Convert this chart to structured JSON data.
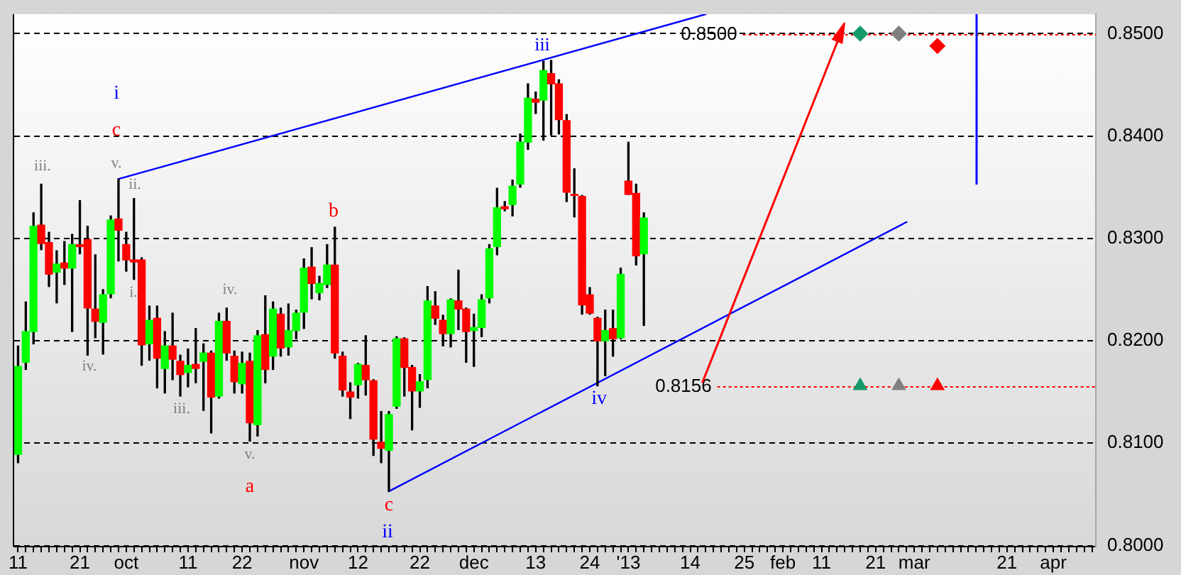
{
  "chart_data": {
    "type": "candlestick",
    "categories": [
      "11",
      null,
      null,
      null,
      null,
      null,
      null,
      null,
      "21",
      null,
      null,
      null,
      null,
      null,
      "oct",
      null,
      null,
      null,
      null,
      null,
      null,
      null,
      "11",
      null,
      null,
      null,
      null,
      null,
      null,
      "22",
      null,
      null,
      null,
      null,
      null,
      null,
      null,
      "nov",
      null,
      null,
      null,
      null,
      null,
      null,
      "12",
      null,
      null,
      null,
      null,
      null,
      null,
      null,
      "22",
      null,
      null,
      null,
      null,
      null,
      null,
      "dec",
      null,
      null,
      null,
      null,
      null,
      null,
      null,
      "13",
      null,
      null,
      null,
      null,
      null,
      null,
      "24",
      null,
      null,
      null,
      null,
      "'13",
      null,
      null,
      null,
      null,
      null,
      null,
      null,
      "14",
      null,
      null,
      null,
      null,
      null,
      null,
      "25",
      null,
      null,
      null,
      null,
      "feb",
      null,
      null,
      null,
      null,
      "11",
      null,
      null,
      null,
      null,
      null,
      null,
      "21",
      null,
      null,
      null,
      null,
      "mar",
      null,
      null,
      null,
      null,
      null,
      null,
      null,
      null,
      null,
      null,
      null,
      "21",
      null,
      null,
      null,
      null,
      null,
      "apr",
      null,
      null,
      null,
      null,
      null
    ],
    "ohlc": [
      [
        0.8089,
        0.8195,
        0.8081,
        0.8175
      ],
      [
        0.8179,
        0.8238,
        0.8172,
        0.8209
      ],
      [
        0.8209,
        0.8325,
        0.8197,
        0.8312
      ],
      [
        0.8313,
        0.8353,
        0.8289,
        0.8295
      ],
      [
        0.8296,
        0.8306,
        0.8253,
        0.8265
      ],
      [
        0.8267,
        0.8288,
        0.8237,
        0.8275
      ],
      [
        0.8276,
        0.8297,
        0.8255,
        0.8271
      ],
      [
        0.8271,
        0.8304,
        0.8209,
        0.8294
      ],
      [
        0.8294,
        0.8337,
        0.8285,
        0.8292
      ],
      [
        0.8299,
        0.8312,
        0.8186,
        0.8232
      ],
      [
        0.8231,
        0.8284,
        0.8203,
        0.8219
      ],
      [
        0.8218,
        0.825,
        0.8187,
        0.8245
      ],
      [
        0.8246,
        0.8322,
        0.8242,
        0.8318
      ],
      [
        0.8319,
        0.8358,
        0.8278,
        0.8308
      ],
      [
        0.8294,
        0.8306,
        0.8268,
        0.8279
      ],
      [
        0.8279,
        0.8339,
        0.826,
        0.8277
      ],
      [
        0.8279,
        0.8281,
        0.8176,
        0.8196
      ],
      [
        0.8197,
        0.8234,
        0.8181,
        0.822
      ],
      [
        0.8222,
        0.8234,
        0.8154,
        0.8183
      ],
      [
        0.8173,
        0.8209,
        0.8149,
        0.8195
      ],
      [
        0.8195,
        0.8227,
        0.8162,
        0.8182
      ],
      [
        0.818,
        0.8186,
        0.8146,
        0.8167
      ],
      [
        0.8169,
        0.8192,
        0.8155,
        0.8176
      ],
      [
        0.8177,
        0.8212,
        0.8159,
        0.8173
      ],
      [
        0.818,
        0.8197,
        0.8132,
        0.8188
      ],
      [
        0.8188,
        0.819,
        0.811,
        0.8145
      ],
      [
        0.8146,
        0.8227,
        0.8144,
        0.8219
      ],
      [
        0.8219,
        0.8232,
        0.8181,
        0.8188
      ],
      [
        0.8185,
        0.819,
        0.8149,
        0.816
      ],
      [
        0.8158,
        0.8189,
        0.8149,
        0.8178
      ],
      [
        0.818,
        0.8188,
        0.8102,
        0.812
      ],
      [
        0.8118,
        0.821,
        0.8107,
        0.8205
      ],
      [
        0.8206,
        0.8244,
        0.8159,
        0.8172
      ],
      [
        0.8185,
        0.8238,
        0.8172,
        0.8231
      ],
      [
        0.8226,
        0.8232,
        0.8185,
        0.8193
      ],
      [
        0.8194,
        0.8236,
        0.8186,
        0.821
      ],
      [
        0.821,
        0.823,
        0.8202,
        0.8227
      ],
      [
        0.8228,
        0.828,
        0.8212,
        0.8271
      ],
      [
        0.8272,
        0.8291,
        0.8241,
        0.8256
      ],
      [
        0.8247,
        0.8263,
        0.824,
        0.8256
      ],
      [
        0.8255,
        0.8294,
        0.8252,
        0.8274
      ],
      [
        0.8274,
        0.8311,
        0.8183,
        0.8188
      ],
      [
        0.8185,
        0.8189,
        0.8146,
        0.8152
      ],
      [
        0.815,
        0.8159,
        0.8124,
        0.8145
      ],
      [
        0.8157,
        0.8178,
        0.8144,
        0.8177
      ],
      [
        0.8176,
        0.8205,
        0.8147,
        0.8162
      ],
      [
        0.8161,
        0.8162,
        0.8088,
        0.8104
      ],
      [
        0.8101,
        0.8131,
        0.8081,
        0.8095
      ],
      [
        0.8093,
        0.8131,
        0.8053,
        0.8128
      ],
      [
        0.8136,
        0.8204,
        0.8134,
        0.8202
      ],
      [
        0.8202,
        0.8203,
        0.8146,
        0.8174
      ],
      [
        0.8174,
        0.8176,
        0.8113,
        0.8151
      ],
      [
        0.8151,
        0.8167,
        0.8135,
        0.816
      ],
      [
        0.8162,
        0.8253,
        0.8154,
        0.8239
      ],
      [
        0.8234,
        0.8248,
        0.8216,
        0.8222
      ],
      [
        0.822,
        0.8225,
        0.8195,
        0.8207
      ],
      [
        0.8207,
        0.8241,
        0.8194,
        0.824
      ],
      [
        0.8239,
        0.8269,
        0.8211,
        0.8231
      ],
      [
        0.8231,
        0.8232,
        0.8179,
        0.8209
      ],
      [
        0.821,
        0.8226,
        0.8175,
        0.8213
      ],
      [
        0.8213,
        0.8245,
        0.8204,
        0.824
      ],
      [
        0.8242,
        0.8294,
        0.8237,
        0.829
      ],
      [
        0.8292,
        0.8349,
        0.8284,
        0.833
      ],
      [
        0.8331,
        0.8336,
        0.8327,
        0.8329
      ],
      [
        0.8333,
        0.8357,
        0.8322,
        0.8351
      ],
      [
        0.8353,
        0.8402,
        0.835,
        0.8394
      ],
      [
        0.8394,
        0.8451,
        0.8387,
        0.8437
      ],
      [
        0.8436,
        0.8443,
        0.8422,
        0.8433
      ],
      [
        0.8435,
        0.8473,
        0.8396,
        0.8464
      ],
      [
        0.8461,
        0.8474,
        0.8401,
        0.8451
      ],
      [
        0.8451,
        0.8455,
        0.8402,
        0.8416
      ],
      [
        0.8415,
        0.8421,
        0.8336,
        0.8345
      ],
      [
        0.8343,
        0.8368,
        0.8321,
        0.8342
      ],
      [
        0.8341,
        0.8342,
        0.8226,
        0.8235
      ],
      [
        0.8245,
        0.8252,
        0.8226,
        0.8227
      ],
      [
        0.8222,
        0.8223,
        0.8156,
        0.82
      ],
      [
        0.82,
        0.823,
        0.8166,
        0.821
      ],
      [
        0.8212,
        0.823,
        0.8185,
        0.8202
      ],
      [
        0.8203,
        0.8271,
        0.8202,
        0.8265
      ],
      [
        0.8356,
        0.8394,
        0.8343,
        0.8343
      ],
      [
        0.8344,
        0.8353,
        0.8274,
        0.8283
      ],
      [
        0.8285,
        0.8325,
        0.8215,
        0.832
      ],
      null,
      null,
      null,
      null,
      null,
      null,
      null,
      null,
      null,
      null,
      null,
      null,
      null,
      null,
      null,
      null,
      null,
      null,
      null,
      null,
      null,
      null,
      null,
      null,
      null,
      null,
      null,
      null,
      null,
      null,
      null,
      null,
      null,
      null,
      null,
      null,
      null,
      null,
      null,
      null,
      null,
      null,
      null,
      null,
      null,
      null,
      null,
      null,
      null,
      null,
      null,
      null,
      null,
      null,
      null,
      null,
      null,
      null
    ],
    "colors": [
      "#00ff00",
      "#00ff00",
      "#00ff00",
      "#ff0000",
      "#ff0000",
      "#00ff00",
      "#ff0000",
      "#00ff00",
      "#ff0000",
      "#ff0000",
      "#ff0000",
      "#00ff00",
      "#00ff00",
      "#ff0000",
      "#ff0000",
      "#ff0000",
      "#ff0000",
      "#00ff00",
      "#ff0000",
      "#00ff00",
      "#ff0000",
      "#ff0000",
      "#00ff00",
      "#ff0000",
      "#00ff00",
      "#ff0000",
      "#00ff00",
      "#ff0000",
      "#ff0000",
      "#00ff00",
      "#ff0000",
      "#00ff00",
      "#ff0000",
      "#00ff00",
      "#ff0000",
      "#00ff00",
      "#00ff00",
      "#00ff00",
      "#ff0000",
      "#00ff00",
      "#00ff00",
      "#ff0000",
      "#ff0000",
      "#ff0000",
      "#00ff00",
      "#ff0000",
      "#ff0000",
      "#ff0000",
      "#00ff00",
      "#00ff00",
      "#ff0000",
      "#ff0000",
      "#00ff00",
      "#00ff00",
      "#ff0000",
      "#ff0000",
      "#00ff00",
      "#ff0000",
      "#ff0000",
      "#00ff00",
      "#00ff00",
      "#00ff00",
      "#00ff00",
      "#ff0000",
      "#00ff00",
      "#00ff00",
      "#00ff00",
      "#ff0000",
      "#00ff00",
      "#ff0000",
      "#ff0000",
      "#ff0000",
      "#ff0000",
      "#ff0000",
      "#ff0000",
      "#ff0000",
      "#00ff00",
      "#ff0000",
      "#00ff00",
      "#ff0000",
      "#ff0000",
      "#00ff00",
      null,
      null,
      null,
      null,
      null,
      null,
      null,
      null,
      null,
      null,
      null,
      null,
      null,
      null,
      null,
      null,
      null,
      null,
      null,
      null,
      null,
      null,
      null,
      null,
      null,
      null,
      null,
      null,
      null,
      null,
      null,
      null,
      null,
      null,
      null,
      null,
      null,
      null,
      null,
      null,
      null,
      null,
      null,
      null,
      null,
      null,
      null,
      null,
      null,
      null,
      null,
      null,
      null,
      null,
      null,
      null,
      null,
      null
    ],
    "ylim": [
      0.7999,
      0.8519
    ],
    "yticks": [
      {
        "value": 0.8,
        "label": "0.8000"
      },
      {
        "value": 0.81,
        "label": "0.8100"
      },
      {
        "value": 0.82,
        "label": "0.8200"
      },
      {
        "value": 0.83,
        "label": "0.8300"
      },
      {
        "value": 0.84,
        "label": "0.8400"
      },
      {
        "value": 0.85,
        "label": "0.8500"
      }
    ],
    "grid": "y",
    "series": [
      {
        "type": "line",
        "color": "#0000ff",
        "values": [
          null,
          null,
          null,
          null,
          null,
          null,
          null,
          null,
          null,
          null,
          null,
          null,
          null,
          0.8358,
          null,
          null,
          null,
          null,
          null,
          null,
          null,
          null,
          null,
          null,
          null,
          null,
          null,
          null,
          null,
          null,
          null,
          null,
          null,
          null,
          null,
          null,
          null,
          null,
          null,
          null,
          null,
          null,
          null,
          null,
          null,
          null,
          null,
          null,
          null,
          null,
          null,
          null,
          null,
          null,
          null,
          null,
          null,
          null,
          null,
          null,
          null,
          null,
          null,
          null,
          null,
          null,
          null,
          null,
          null,
          null,
          null,
          null,
          null,
          null,
          null,
          null,
          null,
          null,
          null,
          null,
          null,
          null,
          null,
          null,
          null,
          null,
          null,
          null,
          null,
          0.8519,
          null,
          null,
          null,
          null,
          null,
          null,
          null,
          null,
          null,
          null,
          null,
          null,
          null,
          null,
          null,
          null,
          null,
          null,
          null,
          null,
          null,
          null,
          null,
          null,
          null,
          null,
          null,
          null,
          null,
          null,
          null,
          null,
          null,
          null,
          null,
          null,
          null,
          null,
          null,
          null,
          null,
          null,
          null,
          null,
          null,
          null,
          null,
          null,
          null,
          null
        ]
      },
      {
        "type": "line",
        "color": "#0000ff",
        "values": [
          null,
          null,
          null,
          null,
          null,
          null,
          null,
          null,
          null,
          null,
          null,
          null,
          null,
          null,
          null,
          null,
          null,
          null,
          null,
          null,
          null,
          null,
          null,
          null,
          null,
          null,
          null,
          null,
          null,
          null,
          null,
          null,
          null,
          null,
          null,
          null,
          null,
          null,
          null,
          null,
          null,
          null,
          null,
          null,
          null,
          null,
          null,
          null,
          0.8053,
          null,
          null,
          null,
          null,
          null,
          null,
          null,
          null,
          null,
          null,
          null,
          null,
          null,
          null,
          null,
          null,
          null,
          null,
          null,
          null,
          null,
          null,
          null,
          null,
          null,
          null,
          null,
          null,
          null,
          null,
          null,
          null,
          null,
          null,
          null,
          null,
          null,
          null,
          null,
          null,
          null,
          null,
          null,
          null,
          null,
          null,
          null,
          null,
          null,
          null,
          null,
          null,
          null,
          null,
          null,
          null,
          null,
          null,
          null,
          null,
          null,
          null,
          null,
          null,
          null,
          null,
          0.8316,
          null,
          null,
          null,
          null,
          null,
          null,
          null,
          null,
          null,
          null,
          null,
          null,
          null,
          null,
          null,
          null,
          null,
          null,
          null,
          null,
          null,
          null,
          null,
          null
        ]
      },
      {
        "type": "scatter",
        "marker": "diamond",
        "values": [
          null,
          null,
          null,
          null,
          null,
          null,
          null,
          null,
          null,
          null,
          null,
          null,
          null,
          null,
          null,
          null,
          null,
          null,
          null,
          null,
          null,
          null,
          null,
          null,
          null,
          null,
          null,
          null,
          null,
          null,
          null,
          null,
          null,
          null,
          null,
          null,
          null,
          null,
          null,
          null,
          null,
          null,
          null,
          null,
          null,
          null,
          null,
          null,
          null,
          null,
          null,
          null,
          null,
          null,
          null,
          null,
          null,
          null,
          null,
          null,
          null,
          null,
          null,
          null,
          null,
          null,
          null,
          null,
          null,
          null,
          null,
          null,
          null,
          null,
          null,
          null,
          null,
          null,
          null,
          null,
          null,
          null,
          null,
          null,
          null,
          null,
          null,
          null,
          null,
          null,
          null,
          null,
          null,
          null,
          null,
          null,
          null,
          null,
          null,
          null,
          null,
          null,
          null,
          null,
          null,
          null,
          null,
          null,
          null,
          0.85,
          null,
          null,
          null,
          null,
          0.85,
          null,
          null,
          null,
          null,
          0.8488,
          null,
          null,
          null,
          null,
          null,
          null,
          null,
          null,
          null,
          null,
          null,
          null,
          null,
          null,
          null,
          null,
          null,
          null,
          null,
          null
        ],
        "colors": [
          null,
          null,
          null,
          null,
          null,
          null,
          null,
          null,
          null,
          null,
          null,
          null,
          null,
          null,
          null,
          null,
          null,
          null,
          null,
          null,
          null,
          null,
          null,
          null,
          null,
          null,
          null,
          null,
          null,
          null,
          null,
          null,
          null,
          null,
          null,
          null,
          null,
          null,
          null,
          null,
          null,
          null,
          null,
          null,
          null,
          null,
          null,
          null,
          null,
          null,
          null,
          null,
          null,
          null,
          null,
          null,
          null,
          null,
          null,
          null,
          null,
          null,
          null,
          null,
          null,
          null,
          null,
          null,
          null,
          null,
          null,
          null,
          null,
          null,
          null,
          null,
          null,
          null,
          null,
          null,
          null,
          null,
          null,
          null,
          null,
          null,
          null,
          null,
          null,
          null,
          null,
          null,
          null,
          null,
          null,
          null,
          null,
          null,
          null,
          null,
          null,
          null,
          null,
          null,
          null,
          null,
          null,
          null,
          null,
          "#169a6a",
          null,
          null,
          null,
          null,
          "#808080",
          null,
          null,
          null,
          null,
          "#ff0000",
          null,
          null,
          null,
          null,
          null,
          null,
          null,
          null,
          null,
          null,
          null,
          null,
          null,
          null,
          null,
          null,
          null,
          null,
          null,
          null
        ]
      },
      {
        "type": "scatter",
        "marker": "triangle",
        "values": [
          null,
          null,
          null,
          null,
          null,
          null,
          null,
          null,
          null,
          null,
          null,
          null,
          null,
          null,
          null,
          null,
          null,
          null,
          null,
          null,
          null,
          null,
          null,
          null,
          null,
          null,
          null,
          null,
          null,
          null,
          null,
          null,
          null,
          null,
          null,
          null,
          null,
          null,
          null,
          null,
          null,
          null,
          null,
          null,
          null,
          null,
          null,
          null,
          null,
          null,
          null,
          null,
          null,
          null,
          null,
          null,
          null,
          null,
          null,
          null,
          null,
          null,
          null,
          null,
          null,
          null,
          null,
          null,
          null,
          null,
          null,
          null,
          null,
          null,
          null,
          null,
          null,
          null,
          null,
          null,
          null,
          null,
          null,
          null,
          null,
          null,
          null,
          null,
          null,
          null,
          null,
          null,
          null,
          null,
          null,
          null,
          null,
          null,
          null,
          null,
          null,
          null,
          null,
          null,
          null,
          null,
          null,
          null,
          null,
          0.8156,
          null,
          null,
          null,
          null,
          0.8156,
          null,
          null,
          null,
          null,
          0.8156,
          null,
          null,
          null,
          null,
          null,
          null,
          null,
          null,
          null,
          null,
          null,
          null,
          null,
          null,
          null,
          null,
          null,
          null,
          null,
          null
        ],
        "colors": [
          null,
          null,
          null,
          null,
          null,
          null,
          null,
          null,
          null,
          null,
          null,
          null,
          null,
          null,
          null,
          null,
          null,
          null,
          null,
          null,
          null,
          null,
          null,
          null,
          null,
          null,
          null,
          null,
          null,
          null,
          null,
          null,
          null,
          null,
          null,
          null,
          null,
          null,
          null,
          null,
          null,
          null,
          null,
          null,
          null,
          null,
          null,
          null,
          null,
          null,
          null,
          null,
          null,
          null,
          null,
          null,
          null,
          null,
          null,
          null,
          null,
          null,
          null,
          null,
          null,
          null,
          null,
          null,
          null,
          null,
          null,
          null,
          null,
          null,
          null,
          null,
          null,
          null,
          null,
          null,
          null,
          null,
          null,
          null,
          null,
          null,
          null,
          null,
          null,
          null,
          null,
          null,
          null,
          null,
          null,
          null,
          null,
          null,
          null,
          null,
          null,
          null,
          null,
          null,
          null,
          null,
          null,
          null,
          null,
          "#169a6a",
          null,
          null,
          null,
          null,
          "#808080",
          null,
          null,
          null,
          null,
          "#ff0000",
          null,
          null,
          null,
          null,
          null,
          null,
          null,
          null,
          null,
          null,
          null,
          null,
          null,
          null,
          null,
          null,
          null,
          null,
          null,
          null
        ]
      }
    ],
    "ref_lines": [
      {
        "axis": "y",
        "value": 0.85,
        "label": "0.8500",
        "color": "#ff0000",
        "line_style": "dotted"
      },
      {
        "axis": "y",
        "value": 0.8156,
        "label": "0.8156",
        "color": "#ff0000",
        "line_style": "dotted"
      }
    ],
    "annotations": [
      "i",
      "ii",
      "iii",
      "iv",
      "c",
      "a",
      "b",
      "c",
      "iii.",
      "iv.",
      "v.",
      "ii.",
      "i.",
      "iii.",
      "iv.",
      "v."
    ]
  }
}
